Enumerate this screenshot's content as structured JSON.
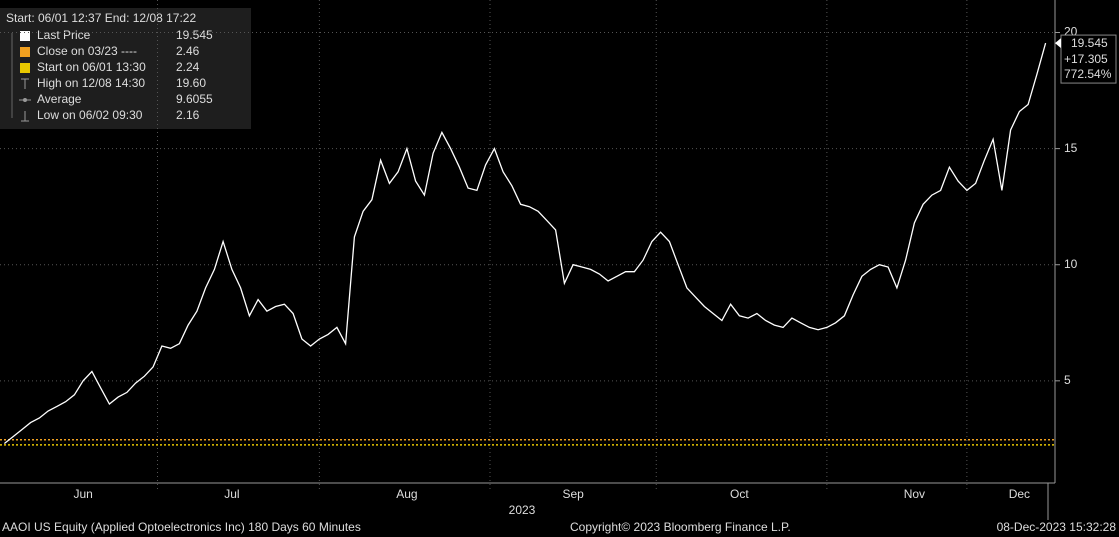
{
  "chart_data": {
    "type": "line",
    "legend_header": "Start: 06/01 12:37 End: 12/08 17:22",
    "legend": [
      {
        "name": "Last Price",
        "value": 19.545,
        "color": "#ffffff"
      },
      {
        "name": "Close on 03/23 ----",
        "value": 2.46,
        "color": "#f0a020",
        "line": "dotted"
      },
      {
        "name": "Start on 06/01 13:30",
        "value": 2.24,
        "color": "#e8c800",
        "line": "dotted"
      },
      {
        "name": "High on 12/08 14:30",
        "value": 19.6,
        "value_label": "19.60"
      },
      {
        "name": "Average",
        "value": 9.6055
      },
      {
        "name": "Low on 06/02 09:30",
        "value": 2.16
      }
    ],
    "last_label": {
      "price": 19.545,
      "change": {
        "value": 17.305,
        "label": "+17.305"
      },
      "percent": {
        "value": 772.54,
        "label": "772.54%"
      }
    },
    "categories": [
      null,
      null,
      null,
      null,
      null,
      null,
      null,
      null,
      null,
      "Jun",
      null,
      null,
      null,
      null,
      null,
      null,
      null,
      null,
      null,
      null,
      null,
      null,
      null,
      null,
      null,
      null,
      "Jul",
      null,
      null,
      null,
      null,
      null,
      null,
      null,
      null,
      null,
      null,
      null,
      null,
      null,
      null,
      null,
      null,
      null,
      null,
      null,
      "Aug",
      null,
      null,
      null,
      null,
      null,
      null,
      null,
      null,
      null,
      null,
      null,
      null,
      null,
      null,
      null,
      null,
      null,
      null,
      "Sep",
      null,
      null,
      null,
      null,
      null,
      null,
      null,
      null,
      null,
      null,
      null,
      null,
      null,
      null,
      null,
      null,
      null,
      null,
      "Oct",
      null,
      null,
      null,
      null,
      null,
      null,
      null,
      null,
      null,
      null,
      null,
      null,
      null,
      null,
      null,
      null,
      null,
      null,
      null,
      "Nov",
      null,
      null,
      null,
      null,
      null,
      null,
      null,
      null,
      null,
      null,
      null,
      "Dec",
      null,
      null,
      null
    ],
    "series": [
      {
        "name": "Last Price",
        "color": "#ffffff",
        "values": [
          2.3,
          2.6,
          2.9,
          3.2,
          3.4,
          3.7,
          3.9,
          4.1,
          4.4,
          5.0,
          5.4,
          4.7,
          4.0,
          4.3,
          4.5,
          4.9,
          5.2,
          5.6,
          6.5,
          6.4,
          6.6,
          7.4,
          8.0,
          9.0,
          9.8,
          11.0,
          9.8,
          9.0,
          7.8,
          8.5,
          8.0,
          8.2,
          8.3,
          7.9,
          6.8,
          6.5,
          6.8,
          7.0,
          7.3,
          6.6,
          11.2,
          12.3,
          12.8,
          14.5,
          13.5,
          14.0,
          15.0,
          13.6,
          13.0,
          14.8,
          15.7,
          15.0,
          14.2,
          13.3,
          13.2,
          14.3,
          15.0,
          14.0,
          13.4,
          12.6,
          12.5,
          12.3,
          11.9,
          11.5,
          9.2,
          10.0,
          9.9,
          9.8,
          9.6,
          9.3,
          9.5,
          9.7,
          9.7,
          10.2,
          11.0,
          11.4,
          11.0,
          10.0,
          9.0,
          8.6,
          8.2,
          7.9,
          7.6,
          8.3,
          7.8,
          7.7,
          7.9,
          7.6,
          7.4,
          7.3,
          7.7,
          7.5,
          7.3,
          7.2,
          7.3,
          7.5,
          7.8,
          8.7,
          9.5,
          9.8,
          10.0,
          9.9,
          9.0,
          10.2,
          11.8,
          12.6,
          13.0,
          13.2,
          14.2,
          13.6,
          13.2,
          13.5,
          14.5,
          15.4,
          13.2,
          15.8,
          16.6,
          16.9,
          18.2,
          19.545
        ]
      }
    ],
    "year_label": "2023",
    "ylim": [
      0.6,
      21.4
    ],
    "yticks": [
      5,
      10,
      15,
      20
    ],
    "grid": true,
    "footer_left": "AAOI US Equity (Applied Optoelectronics Inc) 180 Days 60 Minutes",
    "footer_center": "Copyright© 2023 Bloomberg Finance L.P.",
    "footer_right": "08-Dec-2023 15:32:28"
  }
}
